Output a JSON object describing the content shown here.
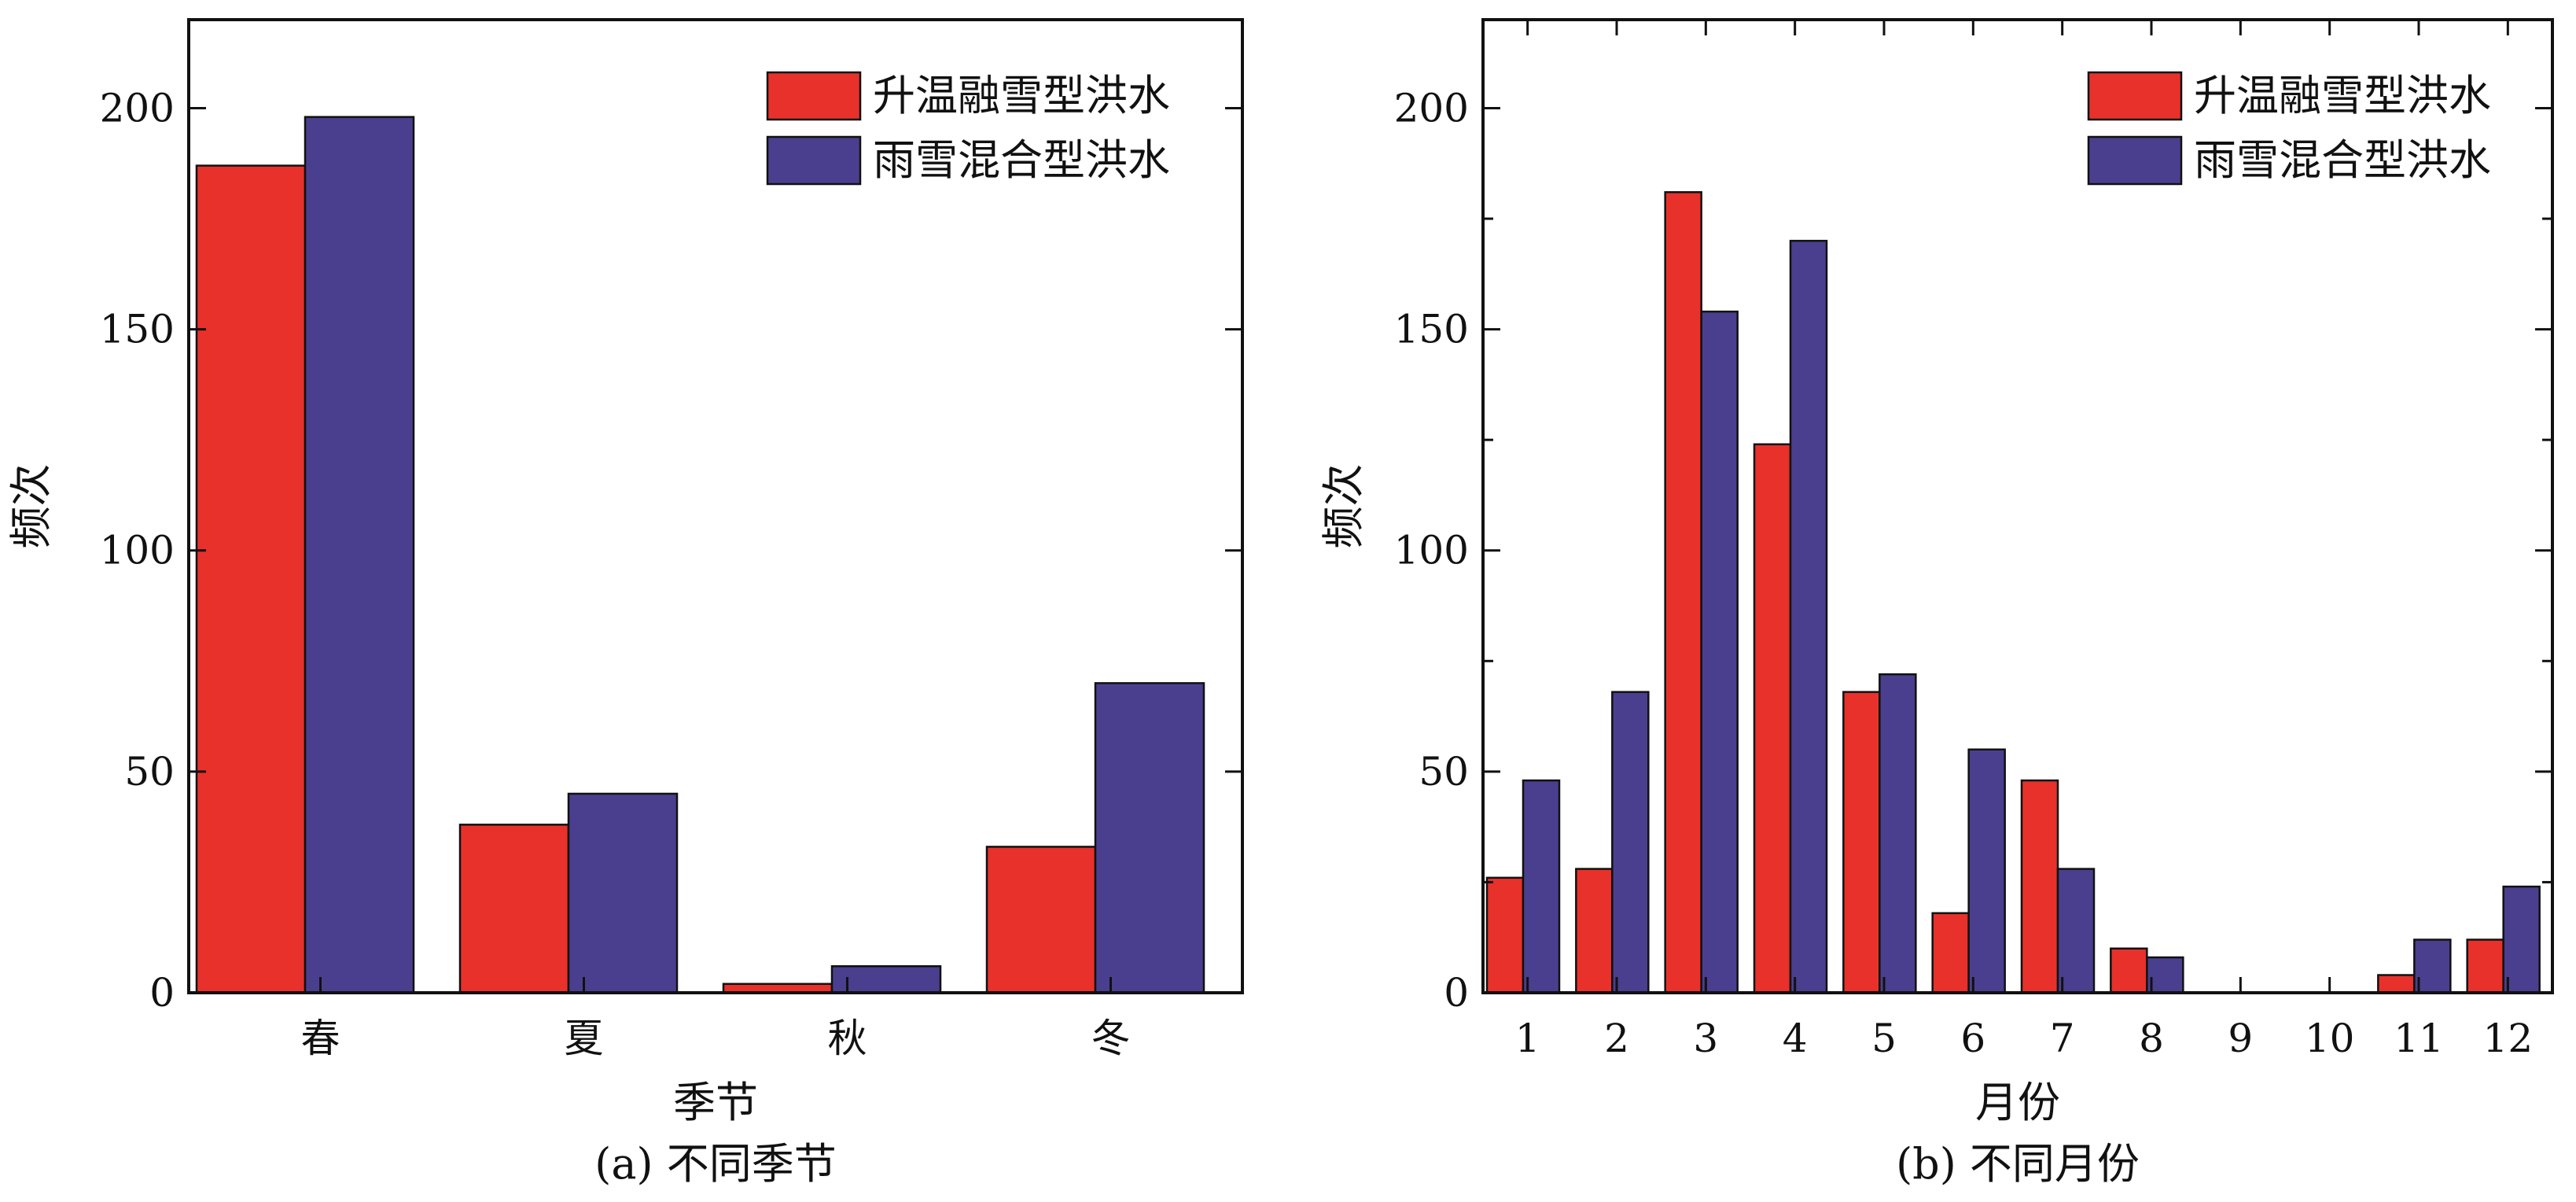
{
  "colors": {
    "series_1": "#e8312a",
    "series_2": "#4a3f8e",
    "axis": "#111111"
  },
  "chart_data": [
    {
      "type": "bar",
      "caption": "(a) 不同季节",
      "xlabel": "季节",
      "ylabel": "频次",
      "ylim": [
        0,
        220
      ],
      "yticks": [
        0,
        50,
        100,
        150,
        200
      ],
      "ytick_labels": [
        "0",
        "50",
        "100",
        "150",
        "200"
      ],
      "categories": [
        "春",
        "夏",
        "秋",
        "冬"
      ],
      "legend_position": "top-right",
      "series": [
        {
          "name": "升温融雪型洪水",
          "values": [
            187,
            38,
            2,
            33
          ]
        },
        {
          "name": "雨雪混合型洪水",
          "values": [
            198,
            45,
            6,
            70
          ]
        }
      ]
    },
    {
      "type": "bar",
      "caption": "(b) 不同月份",
      "xlabel": "月份",
      "ylabel": "频次",
      "ylim": [
        0,
        220
      ],
      "yticks": [
        0,
        50,
        100,
        150,
        200
      ],
      "ytick_labels": [
        "0",
        "50",
        "100",
        "150",
        "200"
      ],
      "categories": [
        "1",
        "2",
        "3",
        "4",
        "5",
        "6",
        "7",
        "8",
        "9",
        "10",
        "11",
        "12"
      ],
      "legend_position": "top-right",
      "series": [
        {
          "name": "升温融雪型洪水",
          "values": [
            26,
            28,
            181,
            124,
            68,
            18,
            48,
            10,
            0,
            0,
            4,
            12
          ]
        },
        {
          "name": "雨雪混合型洪水",
          "values": [
            48,
            68,
            154,
            170,
            72,
            55,
            28,
            8,
            0,
            0,
            12,
            24
          ]
        }
      ]
    }
  ]
}
